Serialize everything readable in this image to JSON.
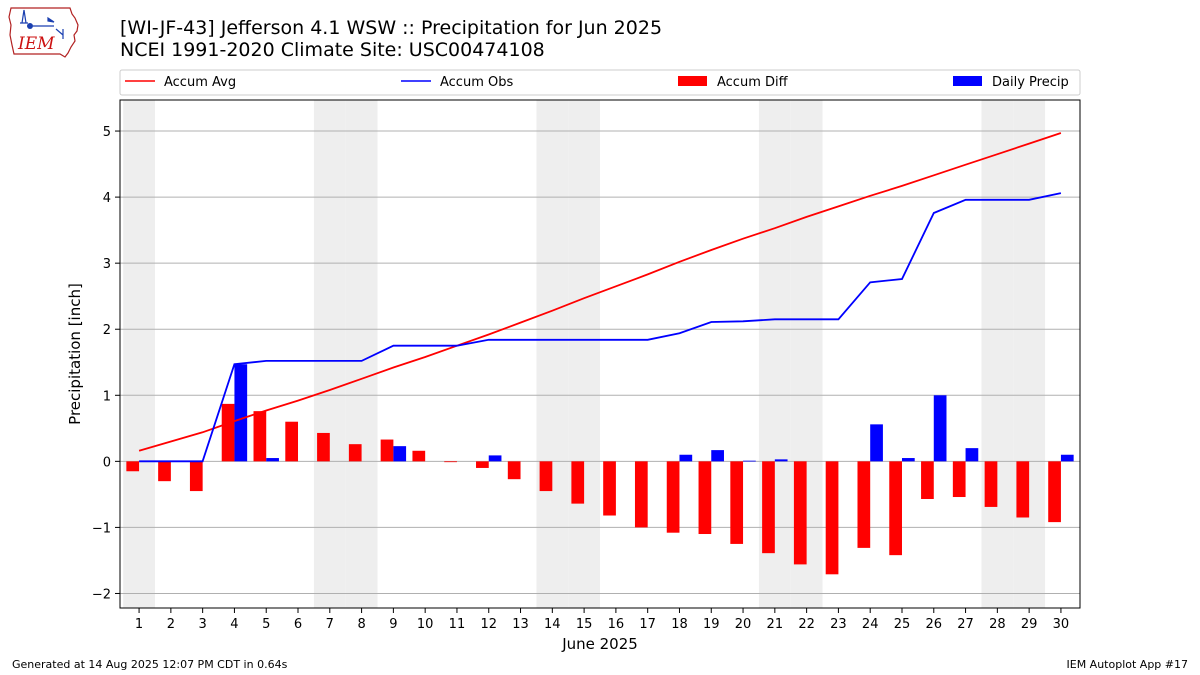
{
  "header": {
    "title_line1": "[WI-JF-43] Jefferson 4.1 WSW :: Precipitation for Jun 2025",
    "title_line2": "NCEI 1991-2020 Climate Site: USC00474108",
    "logo_text": "IEM"
  },
  "footer": {
    "generated": "Generated at 14 Aug 2025 12:07 PM CDT in 0.64s",
    "app": "IEM Autoplot App #17"
  },
  "chart_data": {
    "type": "bar",
    "xlabel": "June 2025",
    "ylabel": "Precipitation [inch]",
    "ylim": [
      -2.22,
      5.47
    ],
    "yticks": [
      -2,
      -1,
      0,
      1,
      2,
      3,
      4,
      5
    ],
    "ytick_labels": [
      "−2",
      "−1",
      "0",
      "1",
      "2",
      "3",
      "4",
      "5"
    ],
    "grid": "horizontal",
    "legend_placement": "top",
    "weekend_shading_color": "#eeeeee",
    "days": [
      1,
      2,
      3,
      4,
      5,
      6,
      7,
      8,
      9,
      10,
      11,
      12,
      13,
      14,
      15,
      16,
      17,
      18,
      19,
      20,
      21,
      22,
      23,
      24,
      25,
      26,
      27,
      28,
      29,
      30
    ],
    "shaded_days": [
      1,
      7,
      8,
      14,
      15,
      21,
      22,
      28,
      29
    ],
    "series": [
      {
        "name": "Accum Avg",
        "kind": "line",
        "color": "#ff0000",
        "values": [
          0.16,
          0.3,
          0.44,
          0.61,
          0.77,
          0.92,
          1.08,
          1.25,
          1.42,
          1.58,
          1.75,
          1.92,
          2.1,
          2.28,
          2.47,
          2.65,
          2.83,
          3.02,
          3.2,
          3.37,
          3.53,
          3.7,
          3.86,
          4.02,
          4.17,
          4.33,
          4.49,
          4.65,
          4.81,
          4.97
        ]
      },
      {
        "name": "Accum Obs",
        "kind": "line",
        "color": "#0000ff",
        "values": [
          0.0,
          0.0,
          0.0,
          1.47,
          1.52,
          1.52,
          1.52,
          1.52,
          1.75,
          1.75,
          1.75,
          1.84,
          1.84,
          1.84,
          1.84,
          1.84,
          1.84,
          1.94,
          2.11,
          2.12,
          2.15,
          2.15,
          2.15,
          2.71,
          2.76,
          3.76,
          3.96,
          3.96,
          3.96,
          4.06
        ]
      },
      {
        "name": "Accum Diff",
        "kind": "bar",
        "color": "#ff0000",
        "values": [
          -0.15,
          -0.3,
          -0.45,
          0.87,
          0.76,
          0.6,
          0.43,
          0.26,
          0.33,
          0.16,
          -0.01,
          -0.1,
          -0.27,
          -0.45,
          -0.64,
          -0.82,
          -1.0,
          -1.08,
          -1.1,
          -1.25,
          -1.39,
          -1.56,
          -1.71,
          -1.31,
          -1.42,
          -0.57,
          -0.54,
          -0.69,
          -0.85,
          -0.92
        ]
      },
      {
        "name": "Daily Precip",
        "kind": "bar",
        "color": "#0000ff",
        "values": [
          0.0,
          0.0,
          0.0,
          1.47,
          0.05,
          0.0,
          0.0,
          0.0,
          0.23,
          0.0,
          0.0,
          0.09,
          0.0,
          0.0,
          0.0,
          0.0,
          0.0,
          0.1,
          0.17,
          0.01,
          0.03,
          0.0,
          0.0,
          0.56,
          0.05,
          1.0,
          0.2,
          0.0,
          0.0,
          0.1
        ]
      }
    ]
  }
}
